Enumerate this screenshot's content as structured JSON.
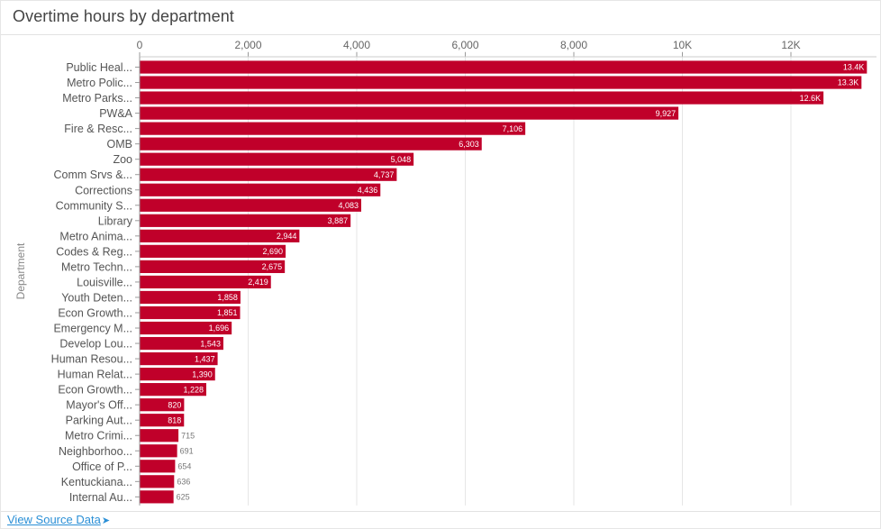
{
  "title": "Overtime hours by department",
  "footer": {
    "link_label": "View Source Data",
    "link_icon": "arrow-right-icon"
  },
  "colors": {
    "bar": "#c0002a",
    "grid": "#e6e6e6",
    "link": "#2a8fd6"
  },
  "chart_data": {
    "type": "bar",
    "orientation": "horizontal",
    "title": "Overtime hours by department",
    "ylabel": "Department",
    "xlabel": "",
    "xlim": [
      0,
      13500
    ],
    "xticks": [
      0,
      2000,
      4000,
      6000,
      8000,
      10000,
      12000
    ],
    "xtick_labels": [
      "0",
      "2,000",
      "4,000",
      "6,000",
      "8,000",
      "10K",
      "12K"
    ],
    "grid": true,
    "categories": [
      "Public Heal...",
      "Metro Polic...",
      "Metro Parks...",
      "PW&A",
      "Fire & Resc...",
      "OMB",
      "Zoo",
      "Comm Srvs &...",
      "Corrections",
      "Community S...",
      "Library",
      "Metro Anima...",
      "Codes & Reg...",
      "Metro Techn...",
      "Louisville...",
      "Youth Deten...",
      "Econ Growth...",
      "Emergency M...",
      "Develop Lou...",
      "Human Resou...",
      "Human Relat...",
      "Econ Growth...",
      "Mayor's Off...",
      "Parking Aut...",
      "Metro Crimi...",
      "Neighborhoo...",
      "Office of P...",
      "Kentuckiana...",
      "Internal Au..."
    ],
    "values": [
      13400,
      13300,
      12600,
      9927,
      7106,
      6303,
      5048,
      4737,
      4436,
      4083,
      3887,
      2944,
      2690,
      2675,
      2419,
      1858,
      1851,
      1696,
      1543,
      1437,
      1390,
      1228,
      820,
      818,
      715,
      691,
      654,
      636,
      625
    ],
    "value_labels": [
      "13.4K",
      "13.3K",
      "12.6K",
      "9,927",
      "7,106",
      "6,303",
      "5,048",
      "4,737",
      "4,436",
      "4,083",
      "3,887",
      "2,944",
      "2,690",
      "2,675",
      "2,419",
      "1,858",
      "1,851",
      "1,696",
      "1,543",
      "1,437",
      "1,390",
      "1,228",
      "820",
      "818",
      "715",
      "691",
      "654",
      "636",
      "625"
    ]
  }
}
